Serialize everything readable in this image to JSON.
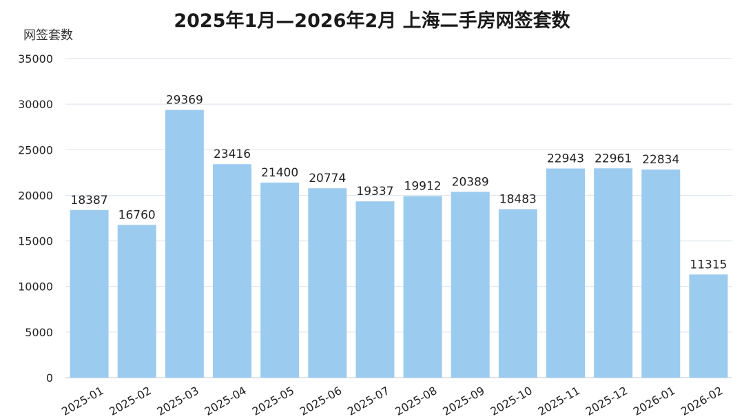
{
  "title": "2025年1月—2026年2月 上海二手房网签套数",
  "chart_data": {
    "type": "bar",
    "title": "2025年1月—2026年2月 上海二手房网签套数",
    "xlabel": "",
    "ylabel": "网签套数",
    "categories": [
      "2025-01",
      "2025-02",
      "2025-03",
      "2025-04",
      "2025-05",
      "2025-06",
      "2025-07",
      "2025-08",
      "2025-09",
      "2025-10",
      "2025-11",
      "2025-12",
      "2026-01",
      "2026-02"
    ],
    "values": [
      18387,
      16760,
      29369,
      23416,
      21400,
      20774,
      19337,
      19912,
      20389,
      18483,
      22943,
      22961,
      22834,
      11315
    ],
    "ylim": [
      0,
      35000
    ],
    "yticks": [
      0,
      5000,
      10000,
      15000,
      20000,
      25000,
      30000,
      35000
    ],
    "grid": true,
    "data_labels": true,
    "bar_color": "#9ccbf0",
    "grid_color": "#d9e2ec",
    "text_color": "#222222"
  }
}
